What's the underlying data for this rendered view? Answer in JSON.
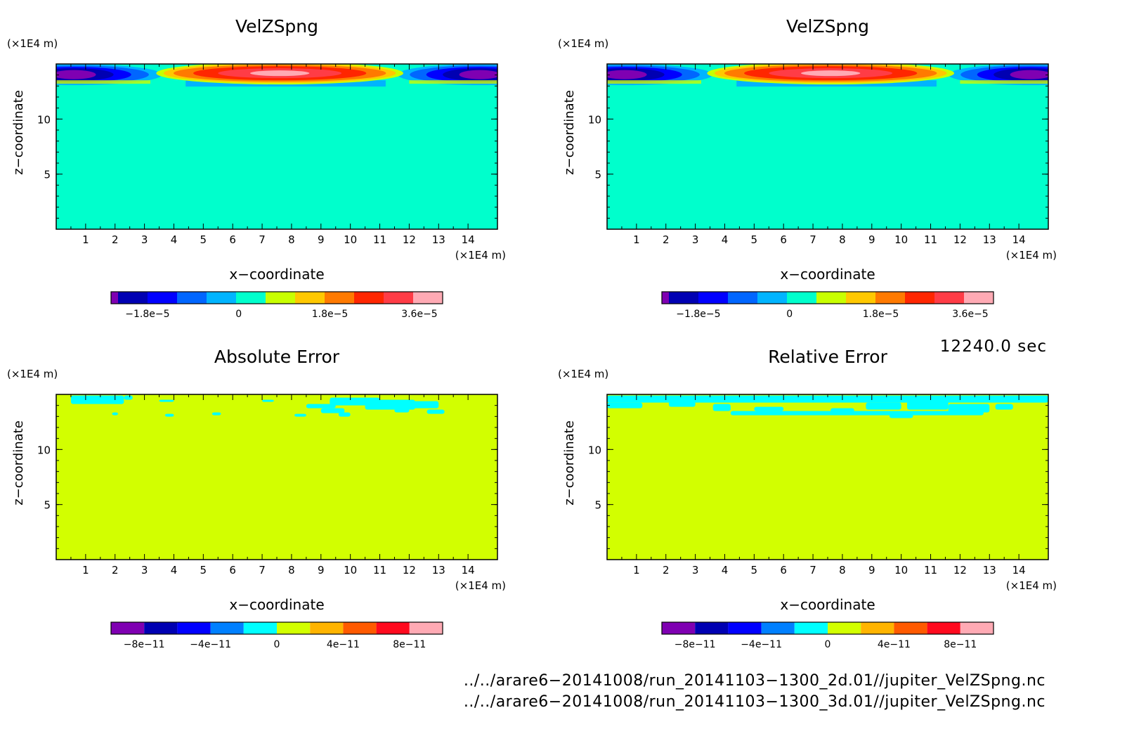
{
  "chart_data": [
    {
      "type": "heatmap",
      "title": "VelZSpng",
      "xlabel": "x−coordinate",
      "ylabel": "z−coordinate",
      "x_unit": "(×1E4 m)",
      "y_unit": "(×1E4 m)",
      "xlim": [
        0,
        15
      ],
      "ylim": [
        0,
        15
      ],
      "x_ticks": [
        1,
        2,
        3,
        4,
        5,
        6,
        7,
        8,
        9,
        10,
        11,
        12,
        13,
        14
      ],
      "y_ticks": [
        5,
        10
      ],
      "background_color": "#00ffcc",
      "colorbar": {
        "colors": [
          "#7f00b2",
          "#0000b2",
          "#0000ff",
          "#0066ff",
          "#00b4ff",
          "#00ffcc",
          "#c8ff00",
          "#ffc800",
          "#ff7a00",
          "#ff2600",
          "#ff3c46",
          "#ffaab4"
        ],
        "tick_labels": [
          "−1.8e−5",
          "0",
          "1.8e−5",
          "3.6e−5"
        ]
      },
      "features": [
        {
          "x": [
            0,
            3.0
          ],
          "z": [
            13.4,
            14.8
          ],
          "value": -2.7e-05,
          "note": "negative lobe"
        },
        {
          "x": [
            3.4,
            11.8
          ],
          "z": [
            12.8,
            14.8
          ],
          "value": 4.5e-05,
          "note": "positive lobe"
        },
        {
          "x": [
            12.2,
            15
          ],
          "z": [
            13.4,
            14.8
          ],
          "value": -2.7e-05,
          "note": "negative lobe"
        }
      ]
    },
    {
      "type": "heatmap",
      "title": "VelZSpng",
      "xlabel": "x−coordinate",
      "ylabel": "z−coordinate",
      "x_unit": "(×1E4 m)",
      "y_unit": "(×1E4 m)",
      "xlim": [
        0,
        15
      ],
      "ylim": [
        0,
        15
      ],
      "x_ticks": [
        1,
        2,
        3,
        4,
        5,
        6,
        7,
        8,
        9,
        10,
        11,
        12,
        13,
        14
      ],
      "y_ticks": [
        5,
        10
      ],
      "background_color": "#00ffcc",
      "colorbar": {
        "colors": [
          "#7f00b2",
          "#0000b2",
          "#0000ff",
          "#0066ff",
          "#00b4ff",
          "#00ffcc",
          "#c8ff00",
          "#ffc800",
          "#ff7a00",
          "#ff2600",
          "#ff3c46",
          "#ffaab4"
        ],
        "tick_labels": [
          "−1.8e−5",
          "0",
          "1.8e−5",
          "3.6e−5"
        ]
      },
      "features": [
        {
          "x": [
            0,
            3.0
          ],
          "z": [
            13.4,
            14.8
          ],
          "value": -2.7e-05,
          "note": "negative lobe"
        },
        {
          "x": [
            3.4,
            11.8
          ],
          "z": [
            12.8,
            14.8
          ],
          "value": 4.5e-05,
          "note": "positive lobe"
        },
        {
          "x": [
            12.2,
            15
          ],
          "z": [
            13.4,
            14.8
          ],
          "value": -2.7e-05,
          "note": "negative lobe"
        }
      ]
    },
    {
      "type": "heatmap",
      "title": "Absolute Error",
      "xlabel": "x−coordinate",
      "ylabel": "z−coordinate",
      "x_unit": "(×1E4 m)",
      "y_unit": "(×1E4 m)",
      "xlim": [
        0,
        15
      ],
      "ylim": [
        0,
        15
      ],
      "x_ticks": [
        1,
        2,
        3,
        4,
        5,
        6,
        7,
        8,
        9,
        10,
        11,
        12,
        13,
        14
      ],
      "y_ticks": [
        5,
        10
      ],
      "background_color": "#d2ff00",
      "colorbar": {
        "colors": [
          "#7f00b2",
          "#0000b2",
          "#0000ff",
          "#0080ff",
          "#00ffff",
          "#d2ff00",
          "#ffb400",
          "#ff5a00",
          "#ff0a1e",
          "#ffaab4"
        ],
        "tick_labels": [
          "−8e−11",
          "−4e−11",
          "0",
          "4e−11",
          "8e−11"
        ]
      },
      "features": [
        {
          "x": [
            0.5,
            2.5
          ],
          "z": [
            14.3,
            14.9
          ],
          "value": -1e-11,
          "note": "small cyan patches near top"
        },
        {
          "x": [
            8.8,
            13.0
          ],
          "z": [
            13.3,
            14.9
          ],
          "value": -1e-11,
          "note": "cyan patches near top"
        }
      ]
    },
    {
      "type": "heatmap",
      "title": "Relative Error",
      "xlabel": "x−coordinate",
      "ylabel": "z−coordinate",
      "x_unit": "(×1E4 m)",
      "y_unit": "(×1E4 m)",
      "xlim": [
        0,
        15
      ],
      "ylim": [
        0,
        15
      ],
      "x_ticks": [
        1,
        2,
        3,
        4,
        5,
        6,
        7,
        8,
        9,
        10,
        11,
        12,
        13,
        14
      ],
      "y_ticks": [
        5,
        10
      ],
      "background_color": "#d2ff00",
      "colorbar": {
        "colors": [
          "#7f00b2",
          "#0000b2",
          "#0000ff",
          "#0080ff",
          "#00ffff",
          "#d2ff00",
          "#ffb400",
          "#ff5a00",
          "#ff0a1e",
          "#ffaab4"
        ],
        "tick_labels": [
          "−8e−11",
          "−4e−11",
          "0",
          "4e−11",
          "8e−11"
        ]
      },
      "features": [
        {
          "x": [
            0,
            15
          ],
          "z": [
            13.9,
            14.9
          ],
          "value": -1e-11,
          "note": "cyan band along top edge"
        },
        {
          "x": [
            3.5,
            13.0
          ],
          "z": [
            13.2,
            13.8
          ],
          "value": -1e-11,
          "note": "cyan streaks"
        }
      ]
    }
  ],
  "timestamp": "12240.0 sec",
  "files": [
    "../../arare6−20141008/run_20141103−1300_2d.01//jupiter_VelZSpng.nc",
    "../../arare6−20141008/run_20141103−1300_3d.01//jupiter_VelZSpng.nc"
  ]
}
